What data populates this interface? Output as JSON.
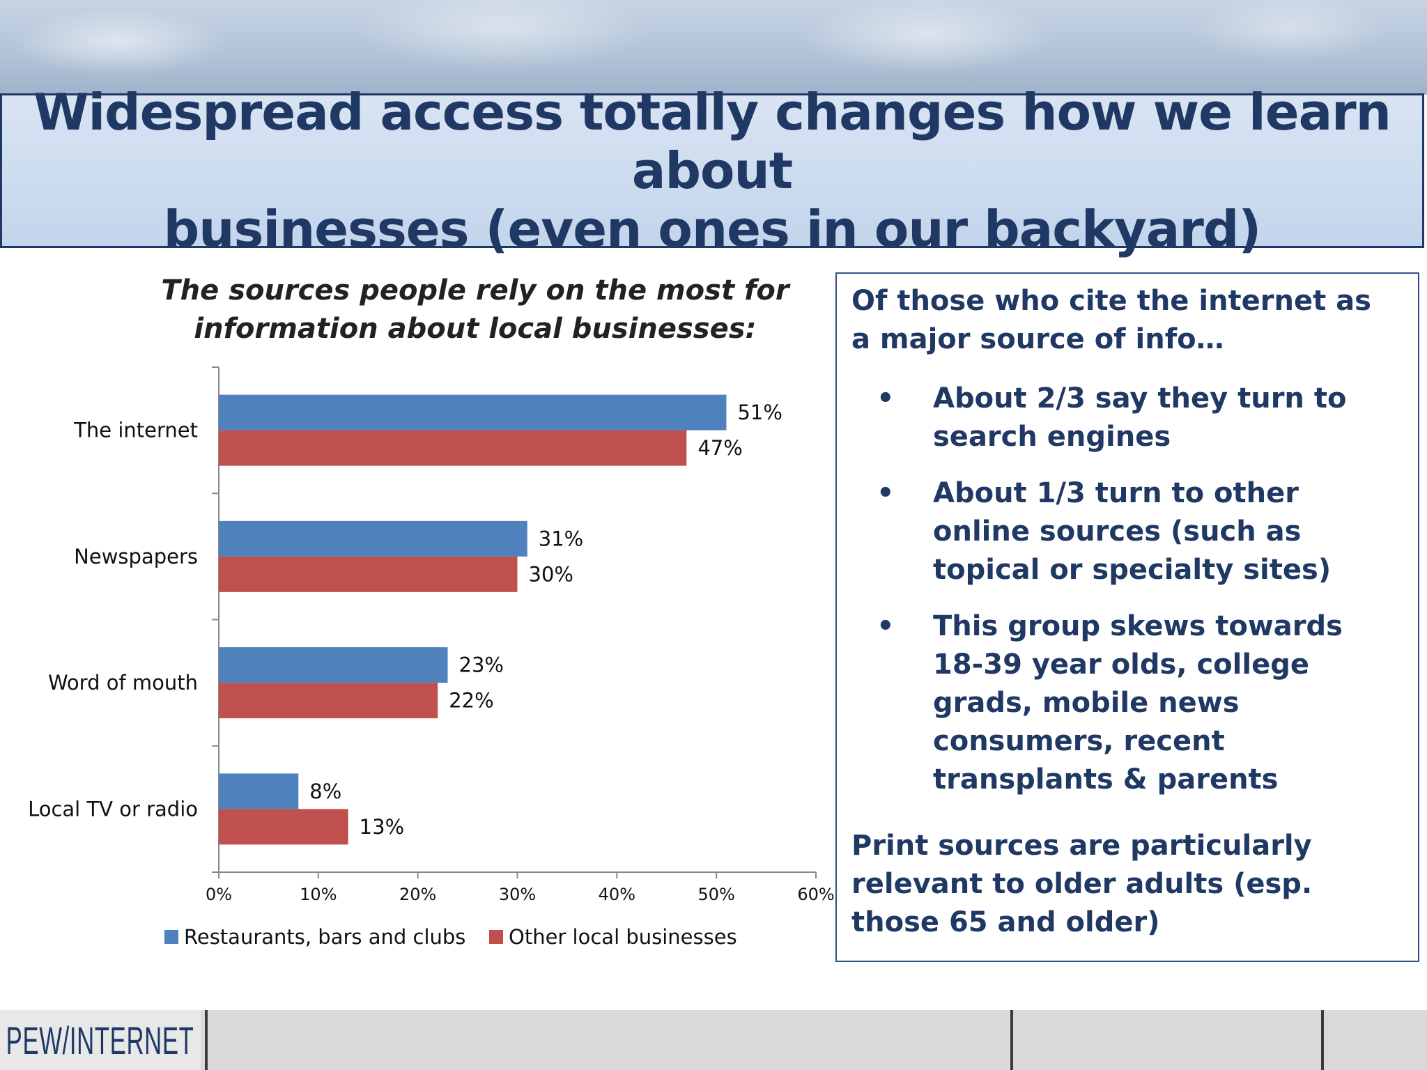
{
  "slide": {
    "title": "Widespread access totally changes how we learn about\nbusinesses (even ones in our backyard)"
  },
  "chart_data": {
    "type": "bar",
    "orientation": "horizontal",
    "title": "The sources people rely on the most for\ninformation about local businesses:",
    "categories": [
      "The internet",
      "Newspapers",
      "Word of mouth",
      "Local TV or radio"
    ],
    "series": [
      {
        "name": "Restaurants, bars and clubs",
        "color": "#4f81bd",
        "values": [
          51,
          31,
          23,
          8
        ]
      },
      {
        "name": "Other local businesses",
        "color": "#c0504d",
        "values": [
          47,
          30,
          22,
          13
        ]
      }
    ],
    "xlim": [
      0,
      60
    ],
    "xticks": [
      0,
      10,
      20,
      30,
      40,
      50,
      60
    ],
    "tick_suffix": "%",
    "data_label_suffix": "%",
    "grid": false,
    "legend_position": "bottom"
  },
  "info": {
    "intro": "Of those who cite the internet as a major source of info…",
    "bullet_symbol": "•",
    "bullets": [
      "About 2/3 say they turn to search engines",
      "About 1/3 turn to other online sources (such as topical or specialty sites)",
      "This group skews towards 18-39 year olds, college grads, mobile news consumers, recent transplants & parents"
    ],
    "outro": "Print sources are particularly relevant to older adults (esp. those 65 and older)"
  },
  "footer": {
    "logo_text": "PEW/INTERNET"
  }
}
